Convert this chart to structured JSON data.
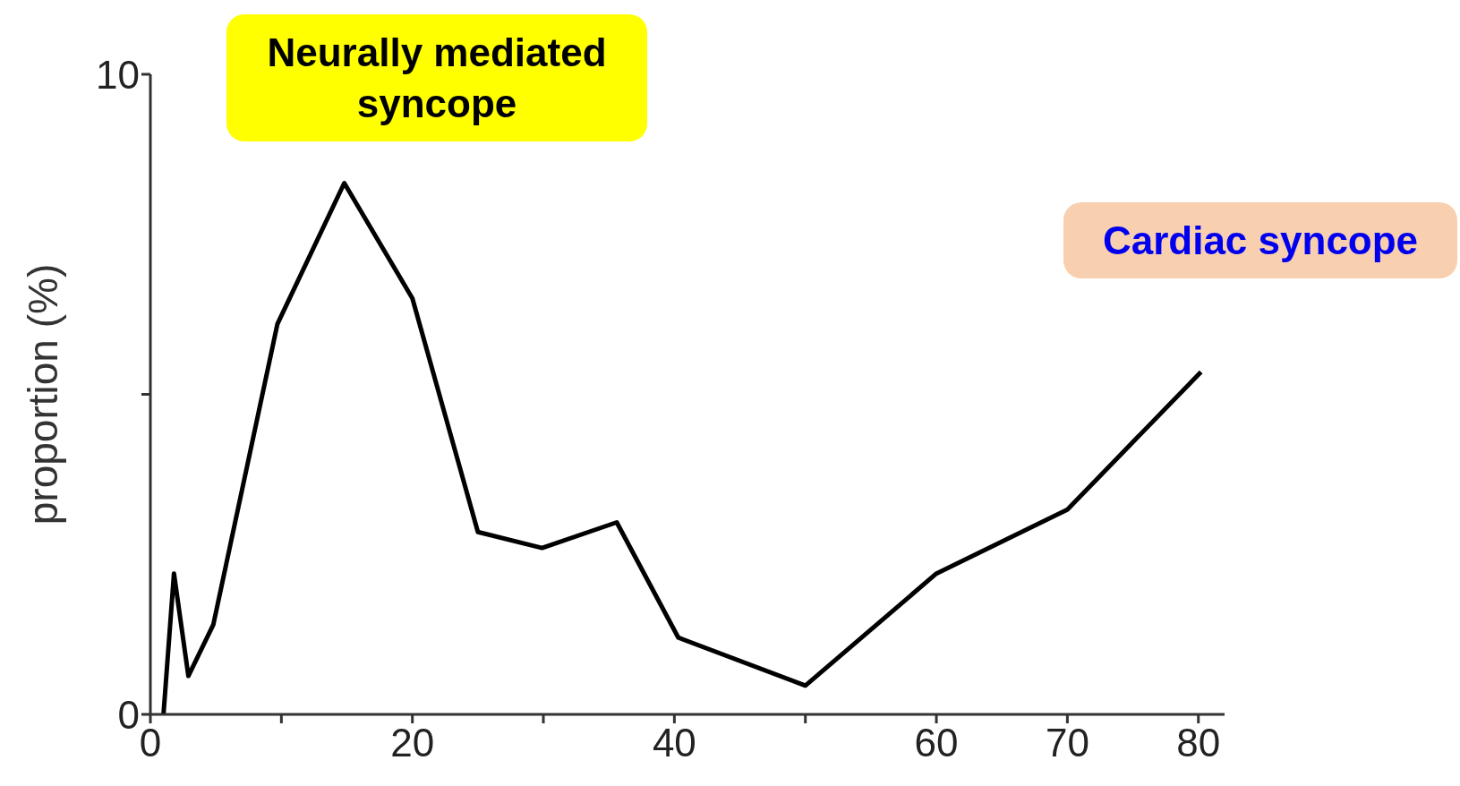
{
  "chart_data": {
    "type": "line",
    "ylabel": "proportion (%)",
    "x": [
      1,
      1.8,
      2.9,
      4.8,
      9.7,
      14.8,
      20,
      25,
      29.9,
      35.6,
      40.3,
      50,
      60,
      70,
      80.2
    ],
    "series": [
      {
        "color": "#000000",
        "values": [
          0,
          2.2,
          0.6,
          1.4,
          6.1,
          8.3,
          6.5,
          2.85,
          2.6,
          3.0,
          1.2,
          0.45,
          2.2,
          3.2,
          5.35
        ]
      }
    ],
    "xlim": [
      0,
      82
    ],
    "xticks": [
      0,
      {
        "value": 10,
        "label": null
      },
      20,
      {
        "value": 30,
        "label": null
      },
      40,
      {
        "value": 50,
        "label": null
      },
      60,
      70,
      80
    ],
    "ylim": [
      0,
      10
    ],
    "yticks": [
      0,
      {
        "value": 5,
        "label": null
      },
      10
    ],
    "marker": "none",
    "line_style": "solid",
    "annotations": [
      "Neurally mediated syncope",
      "Cardiac syncope"
    ]
  }
}
